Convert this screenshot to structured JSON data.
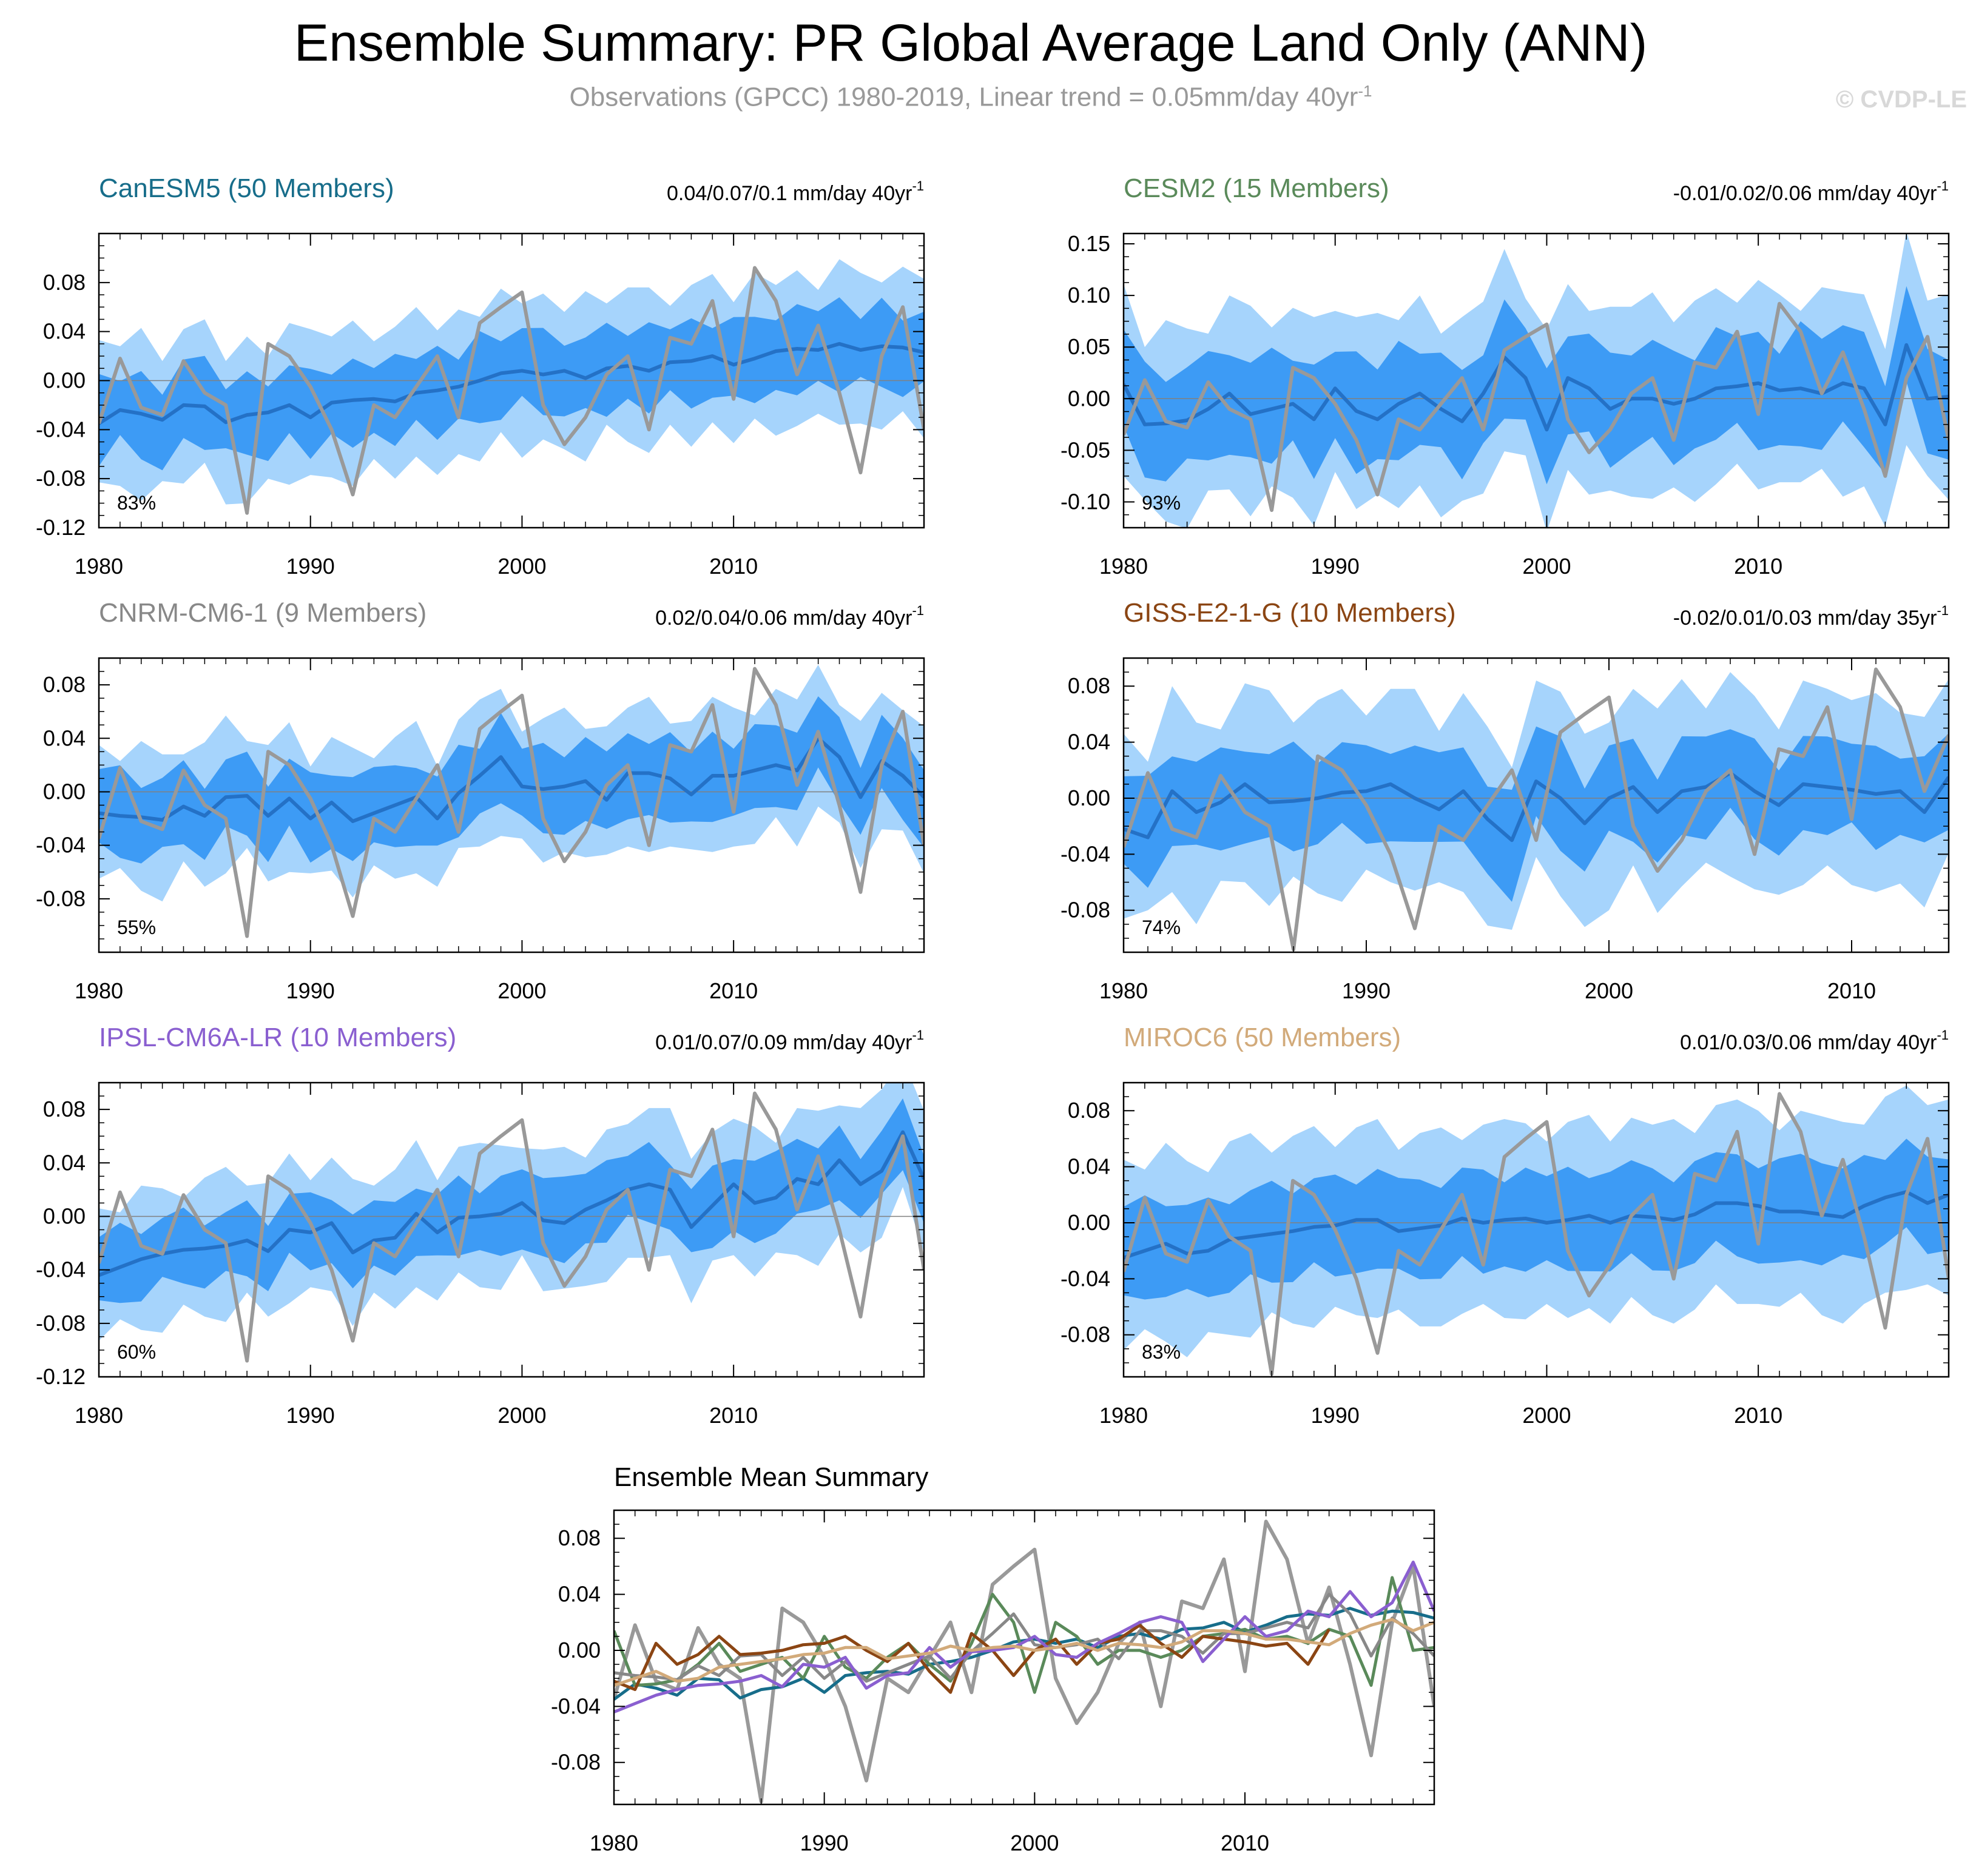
{
  "header": {
    "title": "Ensemble Summary: PR Global Average Land Only (ANN)",
    "subtitle": "Observations (GPCC) 1980-2019, Linear trend = 0.05mm/day 40yr",
    "subtitle_sup": "-1",
    "watermark": "© CVDP-LE"
  },
  "chart_data": {
    "observations": {
      "name": "GPCC",
      "color": "#999999",
      "years": [
        1980,
        1981,
        1982,
        1983,
        1984,
        1985,
        1986,
        1987,
        1988,
        1989,
        1990,
        1991,
        1992,
        1993,
        1994,
        1995,
        1996,
        1997,
        1998,
        1999,
        2000,
        2001,
        2002,
        2003,
        2004,
        2005,
        2006,
        2007,
        2008,
        2009,
        2010,
        2011,
        2012,
        2013,
        2014,
        2015,
        2016,
        2017,
        2018,
        2019
      ],
      "values": [
        -0.035,
        0.018,
        -0.022,
        -0.028,
        0.016,
        -0.01,
        -0.02,
        -0.108,
        0.03,
        0.02,
        -0.005,
        -0.04,
        -0.093,
        -0.02,
        -0.03,
        -0.005,
        0.02,
        -0.03,
        0.047,
        0.06,
        0.072,
        -0.02,
        -0.052,
        -0.03,
        0.005,
        0.02,
        -0.04,
        0.035,
        0.03,
        0.065,
        -0.015,
        0.092,
        0.065,
        0.005,
        0.045,
        -0.01,
        -0.075,
        0.02,
        0.06,
        -0.04
      ]
    },
    "panels": [
      {
        "type": "area",
        "model": "CanESM5",
        "title": "CanESM5 (50 Members)",
        "title_color": "#176d8a",
        "trend_text": "0.04/0.07/0.1 mm/day 40yr",
        "trend_sup": "-1",
        "percent_label": "83%",
        "ylim": [
          -0.12,
          0.12
        ],
        "yticks": [
          0.08,
          0.04,
          0.0,
          -0.04,
          -0.08,
          -0.12
        ],
        "ytick_labels": [
          "0.08",
          "0.04",
          "0.00",
          "-0.04",
          "-0.08",
          "-0.12"
        ],
        "xlim": [
          1980,
          2019
        ],
        "xticks": [
          1980,
          1990,
          2000,
          2010
        ],
        "ens_mean": [
          -0.035,
          -0.024,
          -0.027,
          -0.032,
          -0.02,
          -0.021,
          -0.034,
          -0.028,
          -0.026,
          -0.02,
          -0.03,
          -0.018,
          -0.016,
          -0.015,
          -0.017,
          -0.01,
          -0.008,
          -0.005,
          0.0,
          0.006,
          0.008,
          0.005,
          0.008,
          0.002,
          0.01,
          0.012,
          0.008,
          0.015,
          0.016,
          0.02,
          0.013,
          0.018,
          0.024,
          0.026,
          0.025,
          0.03,
          0.025,
          0.028,
          0.027,
          0.023
        ],
        "mm_spread": 0.03,
        "tot_spread": 0.058,
        "spread_jitter": [
          0.01,
          -0.006,
          0.012,
          -0.01,
          0.004,
          0.013,
          -0.008,
          0.006,
          -0.012,
          0.009,
          0.014,
          -0.004,
          0.007,
          -0.011,
          0.003,
          0.012,
          -0.009,
          0.005,
          -0.006,
          0.011,
          -0.003,
          0.008,
          -0.01,
          0.013,
          -0.005,
          0.006,
          0.01,
          -0.012,
          0.004,
          0.009,
          -0.007,
          0.012,
          -0.004,
          0.006,
          -0.009,
          0.011,
          0.005,
          -0.006,
          0.008,
          0.002
        ]
      },
      {
        "type": "area",
        "model": "CESM2",
        "title": "CESM2 (15 Members)",
        "title_color": "#5a8a5a",
        "trend_text": "-0.01/0.02/0.06 mm/day 40yr",
        "trend_sup": "-1",
        "percent_label": "93%",
        "ylim": [
          -0.125,
          0.16
        ],
        "yticks": [
          0.15,
          0.1,
          0.05,
          0.0,
          -0.05,
          -0.1
        ],
        "ytick_labels": [
          "0.15",
          "0.10",
          "0.05",
          "0.00",
          "-0.05",
          "-0.10"
        ],
        "xlim": [
          1980,
          2019
        ],
        "xticks": [
          1980,
          1990,
          2000,
          2010
        ],
        "ens_mean": [
          0.014,
          -0.025,
          -0.024,
          -0.021,
          -0.01,
          0.005,
          -0.015,
          -0.01,
          -0.005,
          -0.02,
          0.01,
          -0.012,
          -0.02,
          -0.005,
          0.005,
          -0.01,
          -0.022,
          0.005,
          0.04,
          0.02,
          -0.03,
          0.02,
          0.01,
          -0.01,
          0.0,
          0.0,
          -0.005,
          0.0,
          0.01,
          0.012,
          0.015,
          0.008,
          0.01,
          0.005,
          0.015,
          0.01,
          -0.025,
          0.052,
          0.0,
          0.002
        ],
        "mm_spread": 0.045,
        "tot_spread": 0.085,
        "spread_jitter": [
          0.012,
          -0.01,
          0.015,
          0.004,
          -0.012,
          0.01,
          0.02,
          -0.006,
          0.008,
          0.014,
          -0.01,
          0.006,
          0.018,
          -0.004,
          0.01,
          -0.012,
          0.016,
          0.004,
          0.02,
          -0.008,
          0.012,
          0.006,
          -0.01,
          0.014,
          0.004,
          0.018,
          -0.006,
          0.01,
          0.012,
          -0.004,
          0.015,
          0.008,
          -0.01,
          0.018,
          0.004,
          0.006,
          -0.012,
          0.025,
          0.01,
          0.014
        ]
      },
      {
        "type": "area",
        "model": "CNRM-CM6-1",
        "title": "CNRM-CM6-1 (9 Members)",
        "title_color": "#888888",
        "trend_text": "0.02/0.04/0.06 mm/day 40yr",
        "trend_sup": "-1",
        "percent_label": "55%",
        "ylim": [
          -0.12,
          0.1
        ],
        "yticks": [
          0.08,
          0.04,
          0.0,
          -0.04,
          -0.08
        ],
        "ytick_labels": [
          "0.08",
          "0.04",
          "0.00",
          "-0.04",
          "-0.08"
        ],
        "xlim": [
          1980,
          2019
        ],
        "xticks": [
          1980,
          1990,
          2000,
          2010
        ],
        "ens_mean": [
          -0.016,
          -0.018,
          -0.019,
          -0.021,
          -0.011,
          -0.018,
          -0.004,
          -0.003,
          -0.018,
          -0.005,
          -0.02,
          -0.008,
          -0.022,
          -0.016,
          -0.01,
          -0.004,
          -0.02,
          -0.001,
          0.012,
          0.026,
          0.004,
          0.002,
          0.004,
          0.008,
          -0.006,
          0.014,
          0.014,
          0.01,
          -0.002,
          0.012,
          0.012,
          0.016,
          0.02,
          0.016,
          0.04,
          0.026,
          -0.004,
          0.023,
          0.012,
          -0.004
        ],
        "mm_spread": 0.025,
        "tot_spread": 0.045,
        "spread_jitter": [
          0.006,
          -0.004,
          0.012,
          0.004,
          -0.006,
          0.01,
          0.016,
          -0.004,
          0.008,
          0.012,
          -0.006,
          0.004,
          0.01,
          -0.004,
          0.006,
          0.012,
          -0.006,
          0.01,
          0.012,
          0.006,
          -0.004,
          0.008,
          0.014,
          -0.006,
          0.01,
          0.004,
          0.012,
          -0.004,
          0.01,
          0.014,
          0.006,
          -0.004,
          0.012,
          0.008,
          0.01,
          -0.006,
          0.012,
          0.006,
          0.004,
          0.008
        ]
      },
      {
        "type": "area",
        "model": "GISS-E2-1-G",
        "title": "GISS-E2-1-G (10 Members)",
        "title_color": "#8b4513",
        "trend_text": "-0.02/0.01/0.03 mm/day 35yr",
        "trend_sup": "-1",
        "percent_label": "74%",
        "ylim": [
          -0.11,
          0.1
        ],
        "yticks": [
          0.08,
          0.04,
          0.0,
          -0.04,
          -0.08
        ],
        "ytick_labels": [
          "0.08",
          "0.04",
          "0.00",
          "-0.04",
          "-0.08"
        ],
        "xlim": [
          1980,
          2014
        ],
        "xticks": [
          1980,
          1990,
          2000,
          2010
        ],
        "ens_mean": [
          -0.022,
          -0.028,
          0.005,
          -0.01,
          -0.003,
          0.01,
          -0.003,
          -0.002,
          0.0,
          0.004,
          0.005,
          0.01,
          0.0,
          -0.008,
          0.005,
          -0.015,
          -0.03,
          0.012,
          0.0,
          -0.018,
          0.0,
          0.008,
          -0.01,
          0.005,
          0.008,
          0.018,
          0.005,
          -0.005,
          0.01,
          0.008,
          0.006,
          0.003,
          0.005,
          -0.01,
          0.015,
          -0.008
        ],
        "mm_spread": 0.028,
        "tot_spread": 0.06,
        "spread_jitter": [
          0.008,
          -0.006,
          0.015,
          0.004,
          -0.008,
          0.012,
          0.02,
          -0.004,
          0.01,
          0.014,
          -0.006,
          0.008,
          0.018,
          -0.004,
          0.01,
          0.006,
          -0.008,
          0.012,
          0.016,
          0.004,
          -0.006,
          0.01,
          0.014,
          0.02,
          -0.004,
          0.012,
          0.008,
          -0.006,
          0.014,
          0.01,
          0.004,
          0.012,
          -0.004,
          0.008,
          0.01,
          0.006
        ]
      },
      {
        "type": "area",
        "model": "IPSL-CM6A-LR",
        "title": "IPSL-CM6A-LR (10 Members)",
        "title_color": "#8a5fd0",
        "trend_text": "0.01/0.07/0.09 mm/day 40yr",
        "trend_sup": "-1",
        "percent_label": "60%",
        "ylim": [
          -0.12,
          0.1
        ],
        "yticks": [
          0.08,
          0.04,
          0.0,
          -0.04,
          -0.08,
          -0.12
        ],
        "ytick_labels": [
          "0.08",
          "0.04",
          "0.00",
          "-0.04",
          "-0.08",
          "-0.12"
        ],
        "xlim": [
          1980,
          2019
        ],
        "xticks": [
          1980,
          1990,
          2000,
          2010
        ],
        "ens_mean": [
          -0.044,
          -0.038,
          -0.032,
          -0.028,
          -0.025,
          -0.024,
          -0.022,
          -0.018,
          -0.026,
          -0.01,
          -0.012,
          -0.005,
          -0.027,
          -0.018,
          -0.016,
          0.002,
          -0.012,
          -0.001,
          0.0,
          0.002,
          0.01,
          -0.003,
          -0.005,
          0.005,
          0.012,
          0.02,
          0.024,
          0.02,
          -0.008,
          0.008,
          0.024,
          0.01,
          0.014,
          0.028,
          0.024,
          0.042,
          0.024,
          0.034,
          0.063,
          0.028
        ],
        "mm_spread": 0.022,
        "tot_spread": 0.045,
        "spread_jitter": [
          0.005,
          -0.004,
          0.01,
          0.004,
          -0.006,
          0.008,
          0.014,
          -0.004,
          0.006,
          0.012,
          -0.006,
          0.004,
          0.01,
          -0.004,
          0.006,
          0.01,
          -0.006,
          0.008,
          0.01,
          0.006,
          -0.004,
          0.008,
          0.012,
          -0.006,
          0.008,
          0.004,
          0.012,
          0.016,
          0.006,
          0.01,
          0.004,
          0.012,
          -0.004,
          0.008,
          0.01,
          -0.004,
          0.012,
          0.016,
          0.01,
          0.006
        ]
      },
      {
        "type": "area",
        "model": "MIROC6",
        "title": "MIROC6 (50 Members)",
        "title_color": "#d2aa7a",
        "trend_text": "0.01/0.03/0.06 mm/day 40yr",
        "trend_sup": "-1",
        "percent_label": "83%",
        "ylim": [
          -0.11,
          0.1
        ],
        "yticks": [
          0.08,
          0.04,
          0.0,
          -0.04,
          -0.08
        ],
        "ytick_labels": [
          "0.08",
          "0.04",
          "0.00",
          "-0.04",
          "-0.08"
        ],
        "xlim": [
          1980,
          2019
        ],
        "xticks": [
          1980,
          1990,
          2000,
          2010
        ],
        "ens_mean": [
          -0.025,
          -0.02,
          -0.015,
          -0.022,
          -0.02,
          -0.012,
          -0.01,
          -0.008,
          -0.006,
          -0.003,
          -0.002,
          0.002,
          0.002,
          -0.006,
          -0.004,
          -0.002,
          0.003,
          0.0,
          0.002,
          0.003,
          0.0,
          0.002,
          0.005,
          0.0,
          0.005,
          0.004,
          0.002,
          0.006,
          0.014,
          0.014,
          0.012,
          0.008,
          0.008,
          0.006,
          0.004,
          0.012,
          0.018,
          0.022,
          0.014,
          0.02
        ],
        "mm_spread": 0.03,
        "tot_spread": 0.062,
        "spread_jitter": [
          0.008,
          -0.004,
          0.01,
          0.004,
          -0.006,
          0.008,
          0.012,
          -0.004,
          0.006,
          0.01,
          -0.006,
          0.004,
          0.01,
          -0.004,
          0.006,
          0.008,
          -0.006,
          0.008,
          0.01,
          0.006,
          -0.004,
          0.008,
          0.01,
          -0.004,
          0.008,
          0.004,
          0.01,
          -0.004,
          0.008,
          0.012,
          0.006,
          -0.004,
          0.01,
          0.008,
          0.006,
          -0.004,
          0.01,
          0.014,
          0.008,
          0.006
        ]
      }
    ],
    "summary": {
      "type": "line",
      "title": "Ensemble Mean Summary",
      "ylim": [
        -0.11,
        0.1
      ],
      "yticks": [
        0.08,
        0.04,
        0.0,
        -0.04,
        -0.08
      ],
      "ytick_labels": [
        "0.08",
        "0.04",
        "0.00",
        "-0.04",
        "-0.08"
      ],
      "xlim": [
        1980,
        2019
      ],
      "xticks": [
        1980,
        1990,
        2000,
        2010
      ]
    }
  }
}
